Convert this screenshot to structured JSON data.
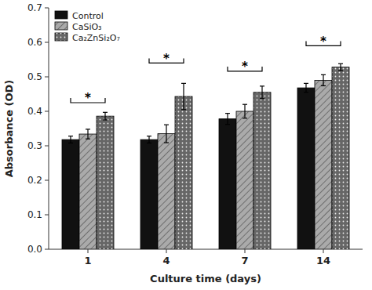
{
  "chart_data": {
    "type": "bar",
    "categories": [
      "1",
      "4",
      "7",
      "14"
    ],
    "xlabel": "Culture time (days)",
    "ylabel": "Absorbance (OD)",
    "series": [
      {
        "name": "Control",
        "color": "#111111",
        "values": [
          0.318,
          0.318,
          0.378,
          0.468
        ],
        "errors": [
          0.01,
          0.01,
          0.016,
          0.013
        ]
      },
      {
        "name": "CaSiO₃",
        "color": "#aaaaaa",
        "values": [
          0.334,
          0.335,
          0.4,
          0.49
        ],
        "errors": [
          0.014,
          0.026,
          0.02,
          0.016
        ]
      },
      {
        "name": "Ca₂ZnSi₂O₇",
        "color": "#666666",
        "values": [
          0.386,
          0.443,
          0.455,
          0.528
        ],
        "errors": [
          0.011,
          0.038,
          0.018,
          0.01
        ]
      }
    ],
    "ylim": [
      0.0,
      0.7
    ],
    "yticks": [
      {
        "value": 0.0,
        "label": "0.0"
      },
      0.1,
      0.2,
      0.3,
      0.4,
      0.5,
      0.6,
      0.7
    ],
    "grid": false,
    "legend": "upper-left",
    "annotations": [
      {
        "text": "*",
        "category": "1",
        "y": 0.425,
        "text_y": 0.436
      },
      {
        "text": "*",
        "category": "4",
        "y": 0.54,
        "text_y": 0.551
      },
      {
        "text": "*",
        "category": "7",
        "y": 0.516,
        "text_y": 0.527
      },
      {
        "text": "*",
        "category": "14",
        "y": 0.59,
        "text_y": 0.601
      }
    ]
  }
}
